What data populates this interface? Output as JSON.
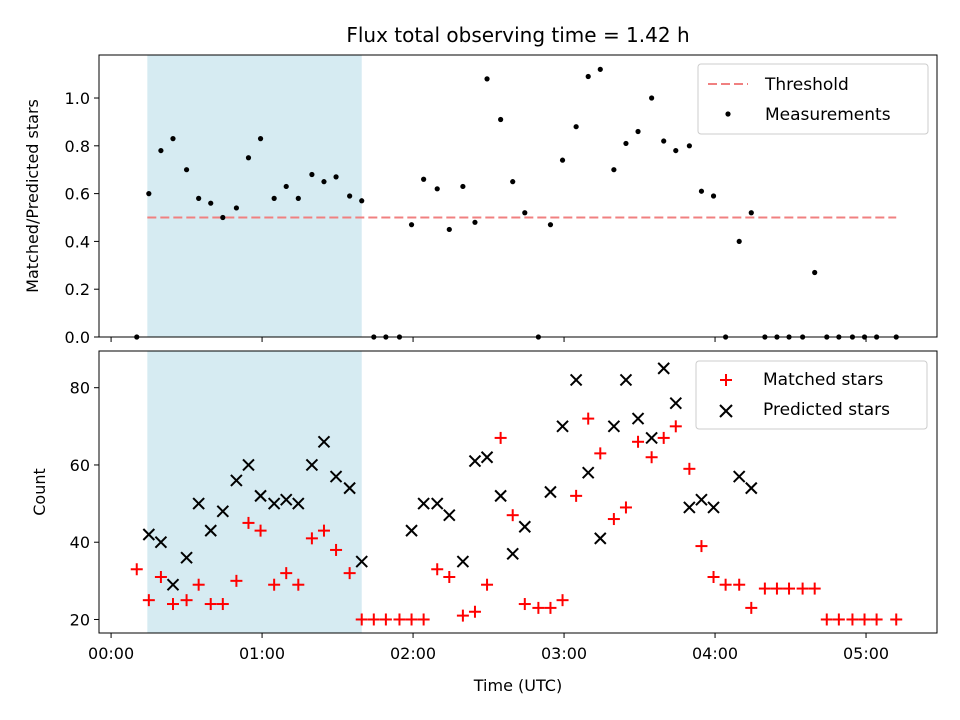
{
  "chart_data": [
    {
      "type": "scatter",
      "title": "Flux total observing time = 1.42 h",
      "xlabel": "",
      "ylabel": "Matched/Predicted stars",
      "x_unit": "hours (UTC)",
      "xlim": [
        -0.08,
        5.47
      ],
      "ylim": [
        0.0,
        1.18
      ],
      "yticks": [
        0.0,
        0.2,
        0.4,
        0.6,
        0.8,
        1.0
      ],
      "ytick_labels": [
        "0.0",
        "0.2",
        "0.4",
        "0.6",
        "0.8",
        "1.0"
      ],
      "shaded_span": [
        0.24,
        1.66
      ],
      "legend_position": "upper right",
      "threshold": {
        "name": "Threshold",
        "y": 0.5,
        "x_start": 0.24,
        "x_end": 5.2,
        "color": "#f08080",
        "style": "dashed"
      },
      "series": [
        {
          "name": "Measurements",
          "color": "#000000",
          "marker": "dot",
          "x": [
            0.17,
            0.25,
            0.33,
            0.41,
            0.5,
            0.58,
            0.66,
            0.74,
            0.83,
            0.91,
            0.99,
            1.08,
            1.16,
            1.24,
            1.33,
            1.41,
            1.49,
            1.58,
            1.66,
            1.74,
            1.82,
            1.91,
            1.99,
            2.07,
            2.16,
            2.24,
            2.33,
            2.41,
            2.49,
            2.58,
            2.66,
            2.74,
            2.83,
            2.91,
            2.99,
            3.08,
            3.16,
            3.24,
            3.33,
            3.41,
            3.49,
            3.58,
            3.66,
            3.74,
            3.83,
            3.91,
            3.99,
            4.07,
            4.16,
            4.24,
            4.33,
            4.41,
            4.49,
            4.58,
            4.66,
            4.74,
            4.82,
            4.91,
            4.99,
            5.07,
            5.2
          ],
          "y": [
            0.0,
            0.6,
            0.78,
            0.83,
            0.7,
            0.58,
            0.56,
            0.5,
            0.54,
            0.75,
            0.83,
            0.58,
            0.63,
            0.58,
            0.68,
            0.65,
            0.67,
            0.59,
            0.57,
            0.0,
            0.0,
            0.0,
            0.47,
            0.66,
            0.62,
            0.45,
            0.63,
            0.48,
            1.08,
            0.91,
            0.65,
            0.52,
            0.0,
            0.47,
            0.74,
            0.88,
            1.09,
            1.12,
            0.7,
            0.81,
            0.86,
            1.0,
            0.82,
            0.78,
            0.8,
            0.61,
            0.59,
            0.0,
            0.4,
            0.52,
            0.0,
            0.0,
            0.0,
            0.0,
            0.27,
            0.0,
            0.0,
            0.0,
            0.0,
            0.0,
            0.0
          ]
        }
      ]
    },
    {
      "type": "scatter",
      "title": "",
      "xlabel": "Time (UTC)",
      "ylabel": "Count",
      "x_unit": "hours (UTC)",
      "xlim": [
        -0.08,
        5.47
      ],
      "ylim": [
        16.5,
        89.5
      ],
      "xticks": [
        0,
        1,
        2,
        3,
        4,
        5
      ],
      "xtick_labels": [
        "00:00",
        "01:00",
        "02:00",
        "03:00",
        "04:00",
        "05:00"
      ],
      "yticks": [
        20,
        40,
        60,
        80
      ],
      "ytick_labels": [
        "20",
        "40",
        "60",
        "80"
      ],
      "shaded_span": [
        0.24,
        1.66
      ],
      "legend_position": "upper right",
      "series": [
        {
          "name": "Matched stars",
          "color": "#ff0000",
          "marker": "plus",
          "x": [
            0.17,
            0.25,
            0.33,
            0.41,
            0.5,
            0.58,
            0.66,
            0.74,
            0.83,
            0.91,
            0.99,
            1.08,
            1.16,
            1.24,
            1.33,
            1.41,
            1.49,
            1.58,
            1.66,
            1.74,
            1.82,
            1.91,
            1.99,
            2.07,
            2.16,
            2.24,
            2.33,
            2.41,
            2.49,
            2.58,
            2.66,
            2.74,
            2.83,
            2.91,
            2.99,
            3.08,
            3.16,
            3.24,
            3.33,
            3.41,
            3.49,
            3.58,
            3.66,
            3.74,
            3.83,
            3.91,
            3.99,
            4.07,
            4.16,
            4.24,
            4.33,
            4.41,
            4.49,
            4.58,
            4.66,
            4.74,
            4.82,
            4.91,
            4.99,
            5.07,
            5.2
          ],
          "y": [
            33,
            25,
            31,
            24,
            25,
            29,
            24,
            24,
            30,
            45,
            43,
            29,
            32,
            29,
            41,
            43,
            38,
            32,
            20,
            20,
            20,
            20,
            20,
            20,
            33,
            31,
            21,
            22,
            29,
            67,
            47,
            24,
            23,
            23,
            25,
            52,
            72,
            63,
            46,
            49,
            66,
            62,
            67,
            70,
            59,
            39,
            31,
            29,
            29,
            23,
            28,
            28,
            28,
            28,
            28,
            20,
            20,
            20,
            20,
            20,
            20
          ]
        },
        {
          "name": "Predicted stars",
          "color": "#000000",
          "marker": "x",
          "x": [
            0.25,
            0.33,
            0.41,
            0.5,
            0.58,
            0.66,
            0.74,
            0.83,
            0.91,
            0.99,
            1.08,
            1.16,
            1.24,
            1.33,
            1.41,
            1.49,
            1.58,
            1.66,
            1.99,
            2.07,
            2.16,
            2.24,
            2.33,
            2.41,
            2.49,
            2.58,
            2.66,
            2.74,
            2.91,
            2.99,
            3.08,
            3.16,
            3.24,
            3.33,
            3.41,
            3.49,
            3.58,
            3.66,
            3.74,
            3.83,
            3.91,
            3.99,
            4.16,
            4.24
          ],
          "y": [
            42,
            40,
            29,
            36,
            50,
            43,
            48,
            56,
            60,
            52,
            50,
            51,
            50,
            60,
            66,
            57,
            54,
            35,
            43,
            50,
            50,
            47,
            35,
            61,
            62,
            52,
            37,
            44,
            53,
            70,
            82,
            58,
            41,
            70,
            82,
            72,
            67,
            85,
            76,
            49,
            51,
            49,
            57,
            54
          ]
        }
      ]
    }
  ]
}
